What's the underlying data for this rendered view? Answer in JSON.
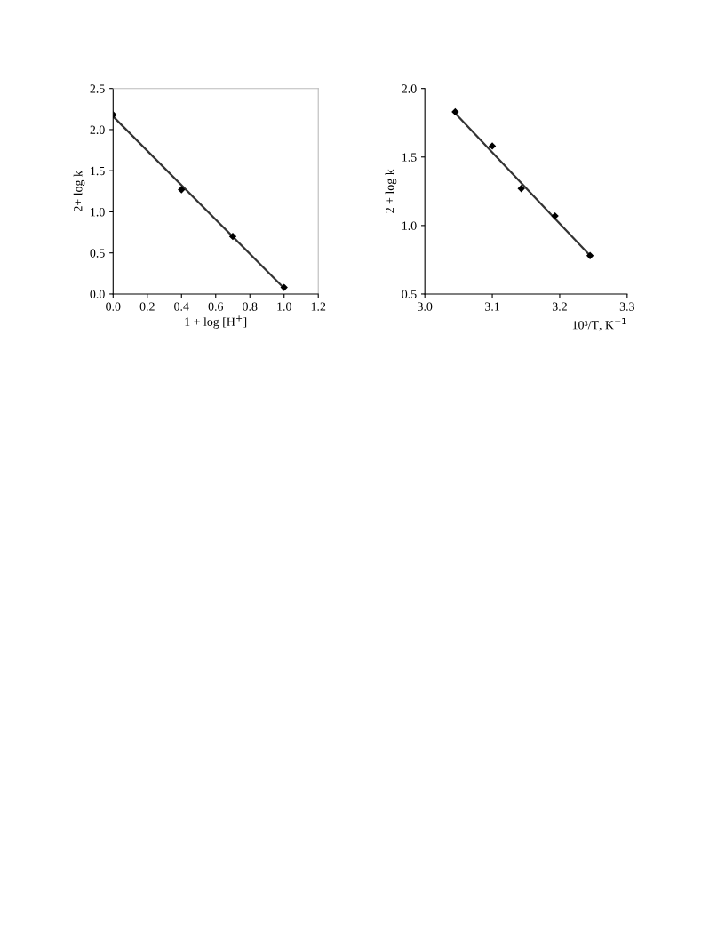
{
  "chart_data": [
    {
      "type": "scatter",
      "xlabel": "1 + log [H$^{+}$]",
      "ylabel": "2+ log k",
      "xlim": [
        0.0,
        1.2
      ],
      "ylim": [
        0.0,
        2.5
      ],
      "xticks": [
        {
          "value": 0,
          "label": "0.0"
        },
        0.2,
        0.4,
        0.6,
        0.8,
        {
          "value": 1.0,
          "label": "1.0"
        },
        1.2
      ],
      "yticks": [
        {
          "value": 0,
          "label": "0.0"
        },
        0.5,
        {
          "value": 1.0,
          "label": "1.0"
        },
        1.5,
        {
          "value": 2.0,
          "label": "2.0"
        },
        2.5
      ],
      "grid": false,
      "series": [
        {
          "color": "#000000",
          "marker": "diamond",
          "x": [
            0.0,
            0.4,
            0.7,
            1.0
          ],
          "values": [
            2.18,
            1.27,
            0.7,
            0.08
          ]
        },
        {
          "type": "line",
          "marker": "none",
          "color": "#333333",
          "x": [
            0.0,
            1.0
          ],
          "values": [
            2.16,
            0.07
          ]
        }
      ]
    },
    {
      "type": "scatter",
      "xlabel": "10³/T, K$^{−1}$",
      "ylabel": "2 + log k",
      "xlim": [
        3.0,
        3.3
      ],
      "ylim": [
        0.5,
        2.0
      ],
      "xticks": [
        {
          "value": 3.0,
          "label": "3.0"
        },
        3.1,
        3.2,
        3.3
      ],
      "yticks": [
        0.5,
        {
          "value": 1.0,
          "label": "1.0"
        },
        1.5,
        {
          "value": 2.0,
          "label": "2.0"
        }
      ],
      "grid": false,
      "series": [
        {
          "color": "#000000",
          "marker": "diamond",
          "x": [
            3.045,
            3.1,
            3.143,
            3.193,
            3.245
          ],
          "values": [
            1.83,
            1.58,
            1.27,
            1.07,
            0.78
          ]
        },
        {
          "type": "line",
          "marker": "none",
          "color": "#333333",
          "x": [
            3.045,
            3.245
          ],
          "values": [
            1.82,
            0.78
          ]
        }
      ]
    }
  ]
}
